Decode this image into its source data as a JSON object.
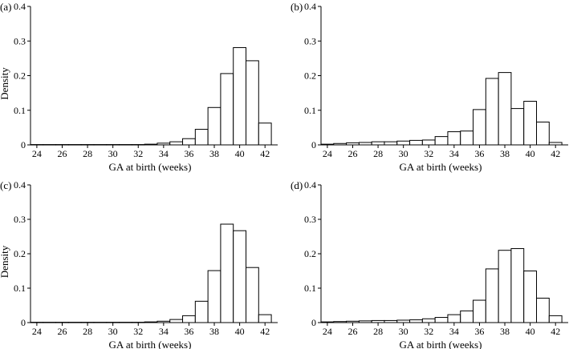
{
  "chart_data": [
    {
      "type": "bar",
      "panel_label": "(a)",
      "xlabel": "GA at birth (weeks)",
      "ylabel": "Density",
      "xlim": [
        23.5,
        43
      ],
      "ylim": [
        0,
        0.4
      ],
      "xticks": [
        "24",
        "26",
        "28",
        "30",
        "32",
        "34",
        "36",
        "38",
        "40",
        "42"
      ],
      "yticks": [
        "0",
        "0.1",
        "0.2",
        "0.3",
        "0.4"
      ],
      "bin_width": 1,
      "bins": [
        24,
        25,
        26,
        27,
        28,
        29,
        30,
        31,
        32,
        33,
        34,
        35,
        36,
        37,
        38,
        39,
        40,
        41,
        42
      ],
      "values": [
        0.001,
        0.001,
        0.001,
        0.001,
        0.001,
        0.001,
        0.001,
        0.001,
        0.001,
        0.002,
        0.005,
        0.009,
        0.018,
        0.045,
        0.108,
        0.206,
        0.281,
        0.243,
        0.063
      ]
    },
    {
      "type": "bar",
      "panel_label": "(b)",
      "xlabel": "GA at birth (weeks)",
      "ylabel": "",
      "xlim": [
        23.5,
        43
      ],
      "ylim": [
        0,
        0.4
      ],
      "xticks": [
        "24",
        "26",
        "28",
        "30",
        "32",
        "34",
        "36",
        "38",
        "40",
        "42"
      ],
      "yticks": [
        "0",
        "0.1",
        "0.2",
        "0.3",
        "0.4"
      ],
      "bin_width": 1,
      "bins": [
        24,
        25,
        26,
        27,
        28,
        29,
        30,
        31,
        32,
        33,
        34,
        35,
        36,
        37,
        38,
        39,
        40,
        41,
        42
      ],
      "values": [
        0.002,
        0.004,
        0.006,
        0.007,
        0.009,
        0.009,
        0.011,
        0.013,
        0.014,
        0.024,
        0.038,
        0.04,
        0.102,
        0.192,
        0.209,
        0.105,
        0.126,
        0.066,
        0.007
      ]
    },
    {
      "type": "bar",
      "panel_label": "(c)",
      "xlabel": "GA at birth (weeks)",
      "ylabel": "Density",
      "xlim": [
        23.5,
        43
      ],
      "ylim": [
        0,
        0.4
      ],
      "xticks": [
        "24",
        "26",
        "28",
        "30",
        "32",
        "34",
        "36",
        "38",
        "40",
        "42"
      ],
      "yticks": [
        "0",
        "0.1",
        "0.2",
        "0.3",
        "0.4"
      ],
      "bin_width": 1,
      "bins": [
        24,
        25,
        26,
        27,
        28,
        29,
        30,
        31,
        32,
        33,
        34,
        35,
        36,
        37,
        38,
        39,
        40,
        41,
        42
      ],
      "values": [
        0.001,
        0.001,
        0.001,
        0.001,
        0.001,
        0.001,
        0.001,
        0.001,
        0.001,
        0.002,
        0.004,
        0.009,
        0.02,
        0.062,
        0.151,
        0.286,
        0.267,
        0.16,
        0.023
      ]
    },
    {
      "type": "bar",
      "panel_label": "(d)",
      "xlabel": "GA at birth (weeks)",
      "ylabel": "",
      "xlim": [
        23.5,
        43
      ],
      "ylim": [
        0,
        0.4
      ],
      "xticks": [
        "24",
        "26",
        "28",
        "30",
        "32",
        "34",
        "36",
        "38",
        "40",
        "42"
      ],
      "yticks": [
        "0",
        "0.1",
        "0.2",
        "0.3",
        "0.4"
      ],
      "bin_width": 1,
      "bins": [
        24,
        25,
        26,
        27,
        28,
        29,
        30,
        31,
        32,
        33,
        34,
        35,
        36,
        37,
        38,
        39,
        40,
        41,
        42
      ],
      "values": [
        0.002,
        0.003,
        0.004,
        0.005,
        0.006,
        0.006,
        0.007,
        0.008,
        0.011,
        0.015,
        0.023,
        0.034,
        0.065,
        0.156,
        0.21,
        0.215,
        0.15,
        0.071,
        0.02
      ]
    }
  ]
}
